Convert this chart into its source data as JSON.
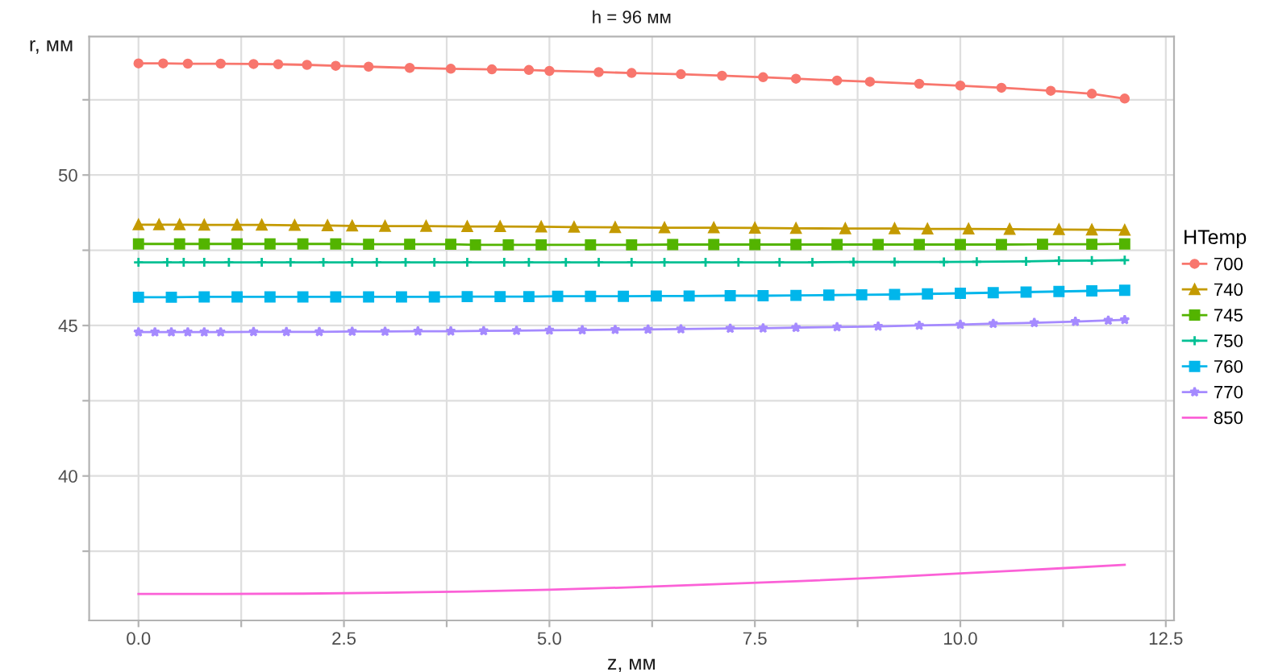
{
  "chart_data": {
    "type": "line",
    "title": "h = 96 мм",
    "xlabel": "z, мм",
    "ylabel": "r, мм",
    "legend_title": "HTemp",
    "legend": "right",
    "grid": true,
    "xlim": [
      -0.6,
      12.6
    ],
    "xticks": [
      {
        "value": 0,
        "label": "0.0"
      },
      {
        "value": 1.25,
        "label": null
      },
      {
        "value": 2.5,
        "label": "2.5"
      },
      {
        "value": 3.75,
        "label": null
      },
      {
        "value": 5,
        "label": "5.0"
      },
      {
        "value": 6.25,
        "label": null
      },
      {
        "value": 7.5,
        "label": "7.5"
      },
      {
        "value": 8.75,
        "label": null
      },
      {
        "value": 10,
        "label": "10.0"
      },
      {
        "value": 11.25,
        "label": null
      },
      {
        "value": 12.5,
        "label": "12.5"
      }
    ],
    "ylim": [
      35.2,
      54.6
    ],
    "yticks": [
      {
        "value": 37.5,
        "label": null
      },
      {
        "value": 40,
        "label": "40"
      },
      {
        "value": 42.5,
        "label": null
      },
      {
        "value": 45,
        "label": "45"
      },
      {
        "value": 47.5,
        "label": null
      },
      {
        "value": 50,
        "label": "50"
      },
      {
        "value": 52.5,
        "label": null
      }
    ],
    "series": [
      {
        "name": "700",
        "color": "#F8766D",
        "marker": "circle",
        "x": [
          0,
          0.3,
          0.6,
          1.0,
          1.4,
          1.7,
          2.05,
          2.4,
          2.8,
          3.3,
          3.8,
          4.3,
          4.75,
          5.0,
          5.6,
          6.0,
          6.6,
          7.1,
          7.6,
          8.0,
          8.5,
          8.9,
          9.5,
          10.0,
          10.5,
          11.1,
          11.6,
          12.0
        ],
        "values": [
          53.71,
          53.71,
          53.7,
          53.7,
          53.69,
          53.68,
          53.66,
          53.63,
          53.6,
          53.56,
          53.53,
          53.51,
          53.49,
          53.46,
          53.42,
          53.39,
          53.35,
          53.3,
          53.25,
          53.2,
          53.14,
          53.1,
          53.03,
          52.97,
          52.9,
          52.8,
          52.7,
          52.54
        ]
      },
      {
        "name": "740",
        "color": "#C49A00",
        "marker": "triangle",
        "x": [
          0,
          0.25,
          0.5,
          0.8,
          1.2,
          1.5,
          1.9,
          2.3,
          2.6,
          3.0,
          3.5,
          4.0,
          4.4,
          4.9,
          5.3,
          5.8,
          6.4,
          7.0,
          7.5,
          8.0,
          8.6,
          9.2,
          9.6,
          10.1,
          10.6,
          11.2,
          11.6,
          12.0
        ],
        "values": [
          48.35,
          48.35,
          48.35,
          48.34,
          48.34,
          48.34,
          48.33,
          48.32,
          48.31,
          48.3,
          48.3,
          48.29,
          48.29,
          48.28,
          48.27,
          48.26,
          48.25,
          48.25,
          48.24,
          48.23,
          48.22,
          48.22,
          48.21,
          48.21,
          48.2,
          48.19,
          48.18,
          48.17
        ]
      },
      {
        "name": "745",
        "color": "#53B400",
        "marker": "square",
        "x": [
          0,
          0.5,
          0.8,
          1.2,
          1.6,
          2.0,
          2.4,
          2.8,
          3.3,
          3.8,
          4.1,
          4.5,
          4.9,
          5.5,
          6.0,
          6.5,
          7.0,
          7.5,
          8.0,
          8.5,
          9.0,
          9.5,
          10.0,
          10.5,
          11.0,
          11.6,
          12.0
        ],
        "values": [
          47.71,
          47.71,
          47.71,
          47.71,
          47.71,
          47.71,
          47.71,
          47.7,
          47.7,
          47.7,
          47.68,
          47.68,
          47.68,
          47.68,
          47.68,
          47.69,
          47.69,
          47.69,
          47.69,
          47.69,
          47.69,
          47.69,
          47.69,
          47.69,
          47.7,
          47.7,
          47.71
        ]
      },
      {
        "name": "750",
        "color": "#00C094",
        "marker": "cross",
        "x": [
          0,
          0.35,
          0.55,
          0.8,
          1.1,
          1.5,
          1.85,
          2.25,
          2.6,
          2.9,
          3.25,
          3.6,
          4.0,
          4.45,
          4.75,
          5.2,
          5.6,
          6.0,
          6.4,
          6.9,
          7.3,
          7.8,
          8.2,
          8.7,
          9.2,
          9.8,
          10.2,
          10.8,
          11.2,
          11.6,
          12.0
        ],
        "values": [
          47.1,
          47.1,
          47.1,
          47.1,
          47.1,
          47.1,
          47.1,
          47.1,
          47.1,
          47.1,
          47.1,
          47.1,
          47.1,
          47.1,
          47.1,
          47.1,
          47.1,
          47.1,
          47.1,
          47.1,
          47.1,
          47.1,
          47.1,
          47.11,
          47.11,
          47.11,
          47.12,
          47.13,
          47.15,
          47.16,
          47.17
        ]
      },
      {
        "name": "760",
        "color": "#00B6EB",
        "marker": "square",
        "x": [
          0,
          0.4,
          0.8,
          1.2,
          1.6,
          2.0,
          2.4,
          2.8,
          3.2,
          3.6,
          4.0,
          4.4,
          4.75,
          5.1,
          5.5,
          5.9,
          6.3,
          6.7,
          7.2,
          7.6,
          8.0,
          8.4,
          8.8,
          9.2,
          9.6,
          10.0,
          10.4,
          10.8,
          11.2,
          11.6,
          12.0
        ],
        "values": [
          45.94,
          45.94,
          45.95,
          45.95,
          45.95,
          45.95,
          45.95,
          45.95,
          45.95,
          45.95,
          45.96,
          45.96,
          45.96,
          45.97,
          45.97,
          45.97,
          45.98,
          45.98,
          45.99,
          45.99,
          46.0,
          46.01,
          46.02,
          46.03,
          46.05,
          46.07,
          46.09,
          46.11,
          46.13,
          46.15,
          46.17
        ]
      },
      {
        "name": "770",
        "color": "#A58AFF",
        "marker": "star",
        "x": [
          0,
          0.2,
          0.4,
          0.6,
          0.8,
          1.0,
          1.4,
          1.8,
          2.2,
          2.6,
          3.0,
          3.4,
          3.8,
          4.2,
          4.6,
          5.0,
          5.4,
          5.8,
          6.2,
          6.6,
          7.2,
          7.6,
          8.0,
          8.5,
          9.0,
          9.5,
          10.0,
          10.4,
          10.9,
          11.4,
          11.8,
          12.0
        ],
        "values": [
          44.78,
          44.78,
          44.78,
          44.78,
          44.78,
          44.78,
          44.79,
          44.79,
          44.79,
          44.8,
          44.8,
          44.81,
          44.81,
          44.82,
          44.83,
          44.84,
          44.85,
          44.86,
          44.87,
          44.88,
          44.9,
          44.91,
          44.93,
          44.95,
          44.97,
          45.0,
          45.03,
          45.06,
          45.09,
          45.13,
          45.17,
          45.19
        ]
      },
      {
        "name": "850",
        "color": "#FB61D7",
        "marker": "none",
        "x": [
          0,
          1,
          2,
          3,
          4,
          5,
          6,
          7,
          8,
          9,
          10,
          11,
          12
        ],
        "values": [
          36.08,
          36.08,
          36.09,
          36.12,
          36.16,
          36.22,
          36.3,
          36.4,
          36.5,
          36.62,
          36.76,
          36.9,
          37.05
        ]
      }
    ]
  }
}
